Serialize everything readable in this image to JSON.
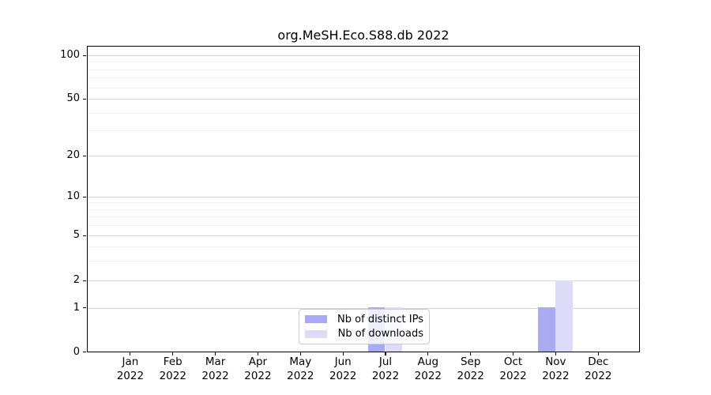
{
  "figure": {
    "background_color": "#ffffff"
  },
  "chart_data": {
    "type": "bar",
    "title": "org.MeSH.Eco.S88.db 2022",
    "xlabel": "",
    "ylabel": "",
    "categories": [
      "Jan 2022",
      "Feb 2022",
      "Mar 2022",
      "Apr 2022",
      "May 2022",
      "Jun 2022",
      "Jul 2022",
      "Aug 2022",
      "Sep 2022",
      "Oct 2022",
      "Nov 2022",
      "Dec 2022"
    ],
    "series": [
      {
        "name": "Nb of distinct IPs",
        "color": "#aaaaf2",
        "values": [
          0,
          0,
          0,
          0,
          0,
          0,
          1,
          0,
          0,
          0,
          1,
          0
        ]
      },
      {
        "name": "Nb of downloads",
        "color": "#dcdcf8",
        "values": [
          0,
          0,
          0,
          0,
          0,
          0,
          1,
          0,
          0,
          0,
          2,
          0
        ]
      }
    ],
    "yscale": "symlog",
    "y_tick_values": [
      0,
      1,
      2,
      5,
      10,
      20,
      50,
      100
    ],
    "y_tick_labels": [
      "0",
      "1",
      "2",
      "5",
      "10",
      "20",
      "50",
      "100"
    ],
    "y_minor_gridline_values": [
      3,
      4,
      6,
      7,
      8,
      9,
      30,
      40,
      60,
      70,
      80,
      90
    ],
    "ylim": [
      0,
      130
    ],
    "grid": "horizontal",
    "legend_position": "inside-bottom-center",
    "axis_color": "#000000",
    "major_grid_color": "#d4d4d4",
    "minor_grid_color": "#f2f2f2"
  }
}
